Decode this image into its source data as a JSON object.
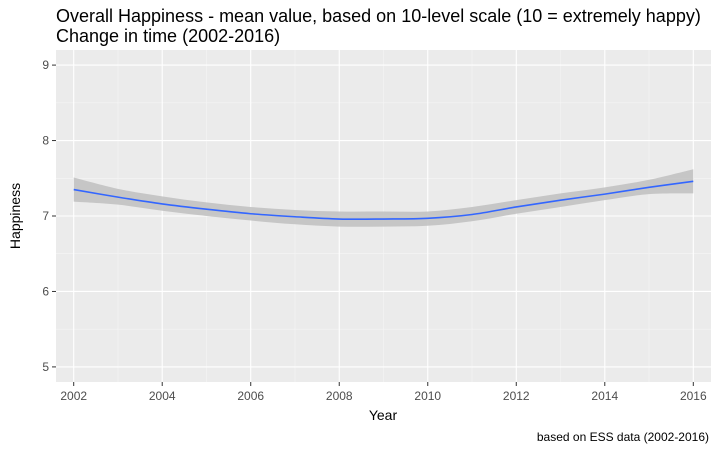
{
  "chart_data": {
    "type": "line",
    "title": "Overall Happiness - mean value, based on 10-level scale (10 = extremely happy)",
    "subtitle": "Change in time (2002-2016)",
    "caption": "based on ESS data (2002-2016)",
    "xlabel": "Year",
    "ylabel": "Happiness",
    "xlim": [
      2001.6,
      2016.4
    ],
    "ylim": [
      4.8,
      9.2
    ],
    "x_ticks": [
      2002,
      2004,
      2006,
      2008,
      2010,
      2012,
      2014,
      2016
    ],
    "y_ticks": [
      5,
      6,
      7,
      8,
      9
    ],
    "grid": true,
    "series": [
      {
        "color": "#3366ff",
        "band_color": "#bfbfbf",
        "x": [
          2002,
          2003,
          2004,
          2005,
          2006,
          2007,
          2008,
          2009,
          2010,
          2011,
          2012,
          2013,
          2014,
          2015,
          2016
        ],
        "y": [
          7.35,
          7.25,
          7.16,
          7.09,
          7.03,
          6.99,
          6.96,
          6.96,
          6.97,
          7.02,
          7.12,
          7.21,
          7.29,
          7.38,
          7.46
        ],
        "lower": [
          7.19,
          7.15,
          7.07,
          7.0,
          6.94,
          6.89,
          6.86,
          6.86,
          6.87,
          6.93,
          7.03,
          7.12,
          7.21,
          7.29,
          7.3
        ],
        "upper": [
          7.51,
          7.36,
          7.26,
          7.18,
          7.12,
          7.08,
          7.06,
          7.06,
          7.06,
          7.12,
          7.21,
          7.3,
          7.38,
          7.48,
          7.62
        ]
      }
    ]
  }
}
